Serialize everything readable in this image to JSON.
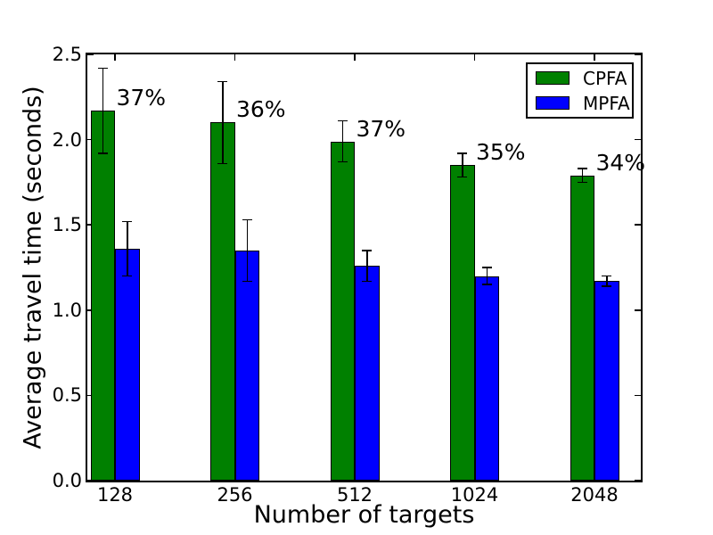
{
  "chart_data": {
    "type": "bar",
    "title": "",
    "xlabel": "Number of targets",
    "ylabel": "Average travel time (seconds)",
    "categories": [
      "128",
      "256",
      "512",
      "1024",
      "2048"
    ],
    "series": [
      {
        "name": "CPFA",
        "color": "#008000",
        "values": [
          2.17,
          2.1,
          1.99,
          1.85,
          1.79
        ],
        "errors": [
          0.25,
          0.24,
          0.12,
          0.07,
          0.04
        ]
      },
      {
        "name": "MPFA",
        "color": "#0000ff",
        "values": [
          1.36,
          1.35,
          1.26,
          1.2,
          1.17
        ],
        "errors": [
          0.16,
          0.18,
          0.09,
          0.05,
          0.03
        ]
      }
    ],
    "annotations": [
      "37%",
      "36%",
      "37%",
      "35%",
      "34%"
    ],
    "ylim": [
      0,
      2.5
    ],
    "ytick_step": 0.5,
    "yticks": [
      "0.0",
      "0.5",
      "1.0",
      "1.5",
      "2.0",
      "2.5"
    ],
    "legend": {
      "position": "upper right",
      "entries": [
        "CPFA",
        "MPFA"
      ]
    },
    "grid": false,
    "background": "#ffffff",
    "bar_edge_color": "#000000",
    "error_bar_color": "#000000",
    "text_color": "#000000"
  }
}
